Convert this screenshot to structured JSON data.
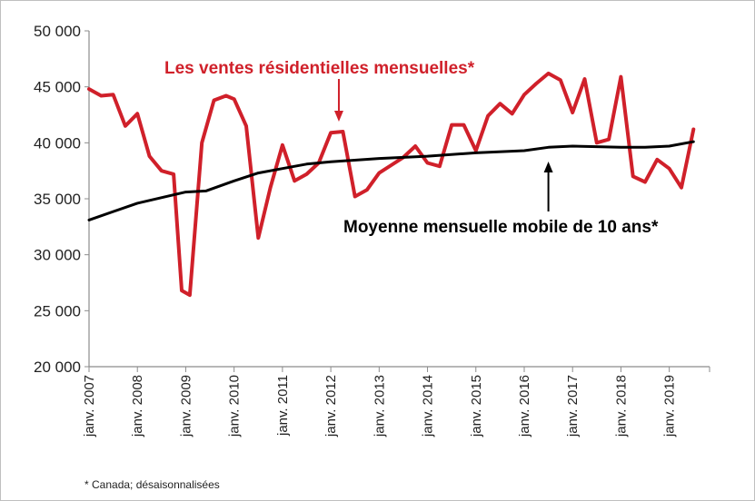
{
  "chart_data": {
    "type": "line",
    "y_ticks": [
      "20 000",
      "25 000",
      "30 000",
      "35 000",
      "40 000",
      "45 000",
      "50 000"
    ],
    "ylim": [
      20000,
      50000
    ],
    "x_ticks": [
      "janv. 2007",
      "janv. 2008",
      "janv. 2009",
      "janv. 2010",
      "janv. 2011",
      "janv. 2012",
      "janv. 2013",
      "janv. 2014",
      "janv. 2015",
      "janv. 2016",
      "janv. 2017",
      "janv. 2018",
      "janv. 2019"
    ],
    "xlim": [
      "2007-01",
      "2019-11"
    ],
    "grid": false,
    "series": [
      {
        "name": "Les ventes résidentielles mensuelles*",
        "color": "#d0202a",
        "x": [
          "2007-01",
          "2007-04",
          "2007-07",
          "2007-10",
          "2008-01",
          "2008-04",
          "2008-07",
          "2008-10",
          "2008-12",
          "2009-02",
          "2009-05",
          "2009-08",
          "2009-11",
          "2010-01",
          "2010-04",
          "2010-07",
          "2010-10",
          "2011-01",
          "2011-04",
          "2011-07",
          "2011-10",
          "2012-01",
          "2012-04",
          "2012-07",
          "2012-10",
          "2013-01",
          "2013-04",
          "2013-07",
          "2013-10",
          "2014-01",
          "2014-04",
          "2014-07",
          "2014-10",
          "2015-01",
          "2015-04",
          "2015-07",
          "2015-10",
          "2016-01",
          "2016-04",
          "2016-07",
          "2016-10",
          "2017-01",
          "2017-04",
          "2017-07",
          "2017-10",
          "2018-01",
          "2018-04",
          "2018-07",
          "2018-10",
          "2019-01",
          "2019-04",
          "2019-07"
        ],
        "y": [
          44800,
          44200,
          44300,
          41500,
          42600,
          38800,
          37500,
          37200,
          26800,
          26400,
          40000,
          43800,
          44200,
          43900,
          41500,
          31500,
          36000,
          39800,
          36600,
          37200,
          38200,
          40900,
          41000,
          35200,
          35800,
          37300,
          38000,
          38700,
          39700,
          38200,
          37900,
          41600,
          41600,
          39300,
          42400,
          43500,
          42600,
          44300,
          45300,
          46200,
          45600,
          42700,
          45700,
          40000,
          40300,
          45900,
          37000,
          36500,
          38500,
          37700,
          36000,
          41200
        ]
      },
      {
        "name": "Moyenne mensuelle mobile de 10 ans*",
        "color": "#000000",
        "x": [
          "2007-01",
          "2008-01",
          "2009-01",
          "2009-06",
          "2010-01",
          "2010-07",
          "2011-01",
          "2011-07",
          "2012-01",
          "2013-01",
          "2014-01",
          "2015-01",
          "2016-01",
          "2016-07",
          "2017-01",
          "2018-01",
          "2018-07",
          "2019-01",
          "2019-07"
        ],
        "y": [
          33100,
          34600,
          35600,
          35700,
          36600,
          37300,
          37700,
          38100,
          38300,
          38600,
          38800,
          39100,
          39300,
          39600,
          39700,
          39600,
          39600,
          39700,
          40100
        ]
      }
    ],
    "annotations": [
      {
        "text": "Les ventes résidentielles mensuelles*",
        "color": "#d0202a",
        "point_at": "2012-03"
      },
      {
        "text": "Moyenne mensuelle mobile de 10 ans*",
        "color": "#000000",
        "point_at": "2016-07"
      }
    ],
    "footnote": "* Canada; désaisonnalisées"
  }
}
